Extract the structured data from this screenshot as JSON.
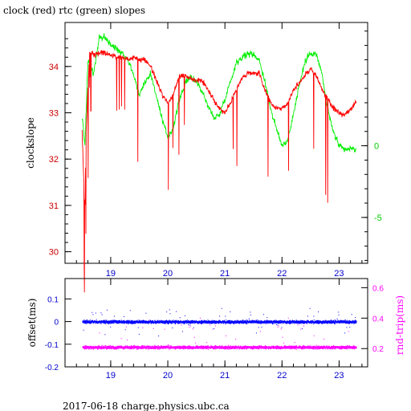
{
  "title": "clock (red) rtc (green) slopes",
  "footer": "2017-06-18 charge.physics.ubc.ca",
  "colors": {
    "clock": "#ff0000",
    "rtc": "#00ee00",
    "offset": "#0000ff",
    "roundtrip": "#ff00ff",
    "axis": "#000000",
    "left_tick_text": "#cc0000",
    "right_tick_text": "#00cc00",
    "bottom_tick_text": "#0000cc",
    "rt_tick_text": "#ff00ff"
  },
  "chart_data": [
    {
      "type": "line",
      "title": "clock (red) rtc (green) slopes",
      "ylabel": "clockslope",
      "xlim": [
        18.2,
        23.5
      ],
      "ylim": [
        29.75,
        34.95
      ],
      "y2lim": [
        -8.2,
        8.6
      ],
      "x_ticks": [
        "19",
        "20",
        "21",
        "22",
        "23"
      ],
      "y_ticks": [
        "30",
        "31",
        "32",
        "33",
        "34"
      ],
      "y2_ticks": [
        "0",
        "-5"
      ],
      "series": [
        {
          "axis": "left",
          "x": [
            18.5,
            18.52,
            18.55,
            18.57,
            18.6,
            18.63,
            18.67,
            18.72,
            18.8,
            18.9,
            19.0,
            19.1,
            19.2,
            19.3,
            19.4,
            19.5,
            19.6,
            19.7,
            19.8,
            19.9,
            20.0,
            20.1,
            20.2,
            20.3,
            20.4,
            20.5,
            20.6,
            20.7,
            20.8,
            20.9,
            21.0,
            21.1,
            21.2,
            21.3,
            21.4,
            21.5,
            21.6,
            21.7,
            21.8,
            21.9,
            22.0,
            22.1,
            22.2,
            22.3,
            22.4,
            22.5,
            22.6,
            22.7,
            22.8,
            22.9,
            23.0,
            23.1,
            23.2,
            23.3
          ],
          "y": [
            32.6,
            31.8,
            31.0,
            32.6,
            33.5,
            34.3,
            34.3,
            34.25,
            34.3,
            34.3,
            34.25,
            34.2,
            34.2,
            34.15,
            34.2,
            34.15,
            34.15,
            34.0,
            33.7,
            33.4,
            33.2,
            33.4,
            33.8,
            33.8,
            33.75,
            33.7,
            33.7,
            33.5,
            33.3,
            33.1,
            33.0,
            33.2,
            33.5,
            33.75,
            33.85,
            33.85,
            33.85,
            33.5,
            33.2,
            33.1,
            33.1,
            33.2,
            33.5,
            33.65,
            33.8,
            33.95,
            33.8,
            33.5,
            33.3,
            33.1,
            33.0,
            32.95,
            33.05,
            33.25
          ]
        },
        {
          "axis": "right",
          "x": [
            18.5,
            18.55,
            18.6,
            18.65,
            18.7,
            18.8,
            18.9,
            19.0,
            19.1,
            19.2,
            19.3,
            19.4,
            19.5,
            19.6,
            19.7,
            19.8,
            19.9,
            20.0,
            20.1,
            20.2,
            20.3,
            20.4,
            20.5,
            20.6,
            20.7,
            20.8,
            20.9,
            21.0,
            21.1,
            21.2,
            21.3,
            21.4,
            21.5,
            21.6,
            21.7,
            21.8,
            21.9,
            22.0,
            22.1,
            22.2,
            22.3,
            22.4,
            22.5,
            22.6,
            22.7,
            22.8,
            22.9,
            23.0,
            23.1,
            23.2,
            23.3
          ],
          "y": [
            2.0,
            0.0,
            6.0,
            5.5,
            5.0,
            7.5,
            7.6,
            7.0,
            6.8,
            6.5,
            6.0,
            5.0,
            3.5,
            4.5,
            5.0,
            3.5,
            1.8,
            0.6,
            1.3,
            3.2,
            4.3,
            4.8,
            4.5,
            3.8,
            2.8,
            2.0,
            2.1,
            3.3,
            4.5,
            5.8,
            6.2,
            6.4,
            6.4,
            6.0,
            4.5,
            2.6,
            1.2,
            0.0,
            0.4,
            2.2,
            4.2,
            5.8,
            6.5,
            6.4,
            5.0,
            2.5,
            1.0,
            0.0,
            -0.3,
            -0.2,
            -0.3
          ]
        }
      ]
    },
    {
      "type": "scatter",
      "ylabel": "offset(ms)",
      "y2label": "rnd-trip(ms)",
      "xlim": [
        18.2,
        23.5
      ],
      "ylim": [
        -0.2,
        0.19
      ],
      "y2lim": [
        0.08,
        0.66
      ],
      "x_ticks": [
        "19",
        "20",
        "21",
        "22",
        "23"
      ],
      "y_ticks": [
        "0.1",
        "0",
        "-0.1",
        "-0.2"
      ],
      "y2_ticks": [
        "0.6",
        "0.4",
        "0.2"
      ],
      "series": [
        {
          "axis": "left",
          "x_range": [
            18.5,
            23.3
          ],
          "center": 0.0,
          "spread": 0.01
        },
        {
          "axis": "right",
          "x_range": [
            18.5,
            23.3
          ],
          "center": 0.21,
          "spread": 0.015
        }
      ]
    }
  ]
}
